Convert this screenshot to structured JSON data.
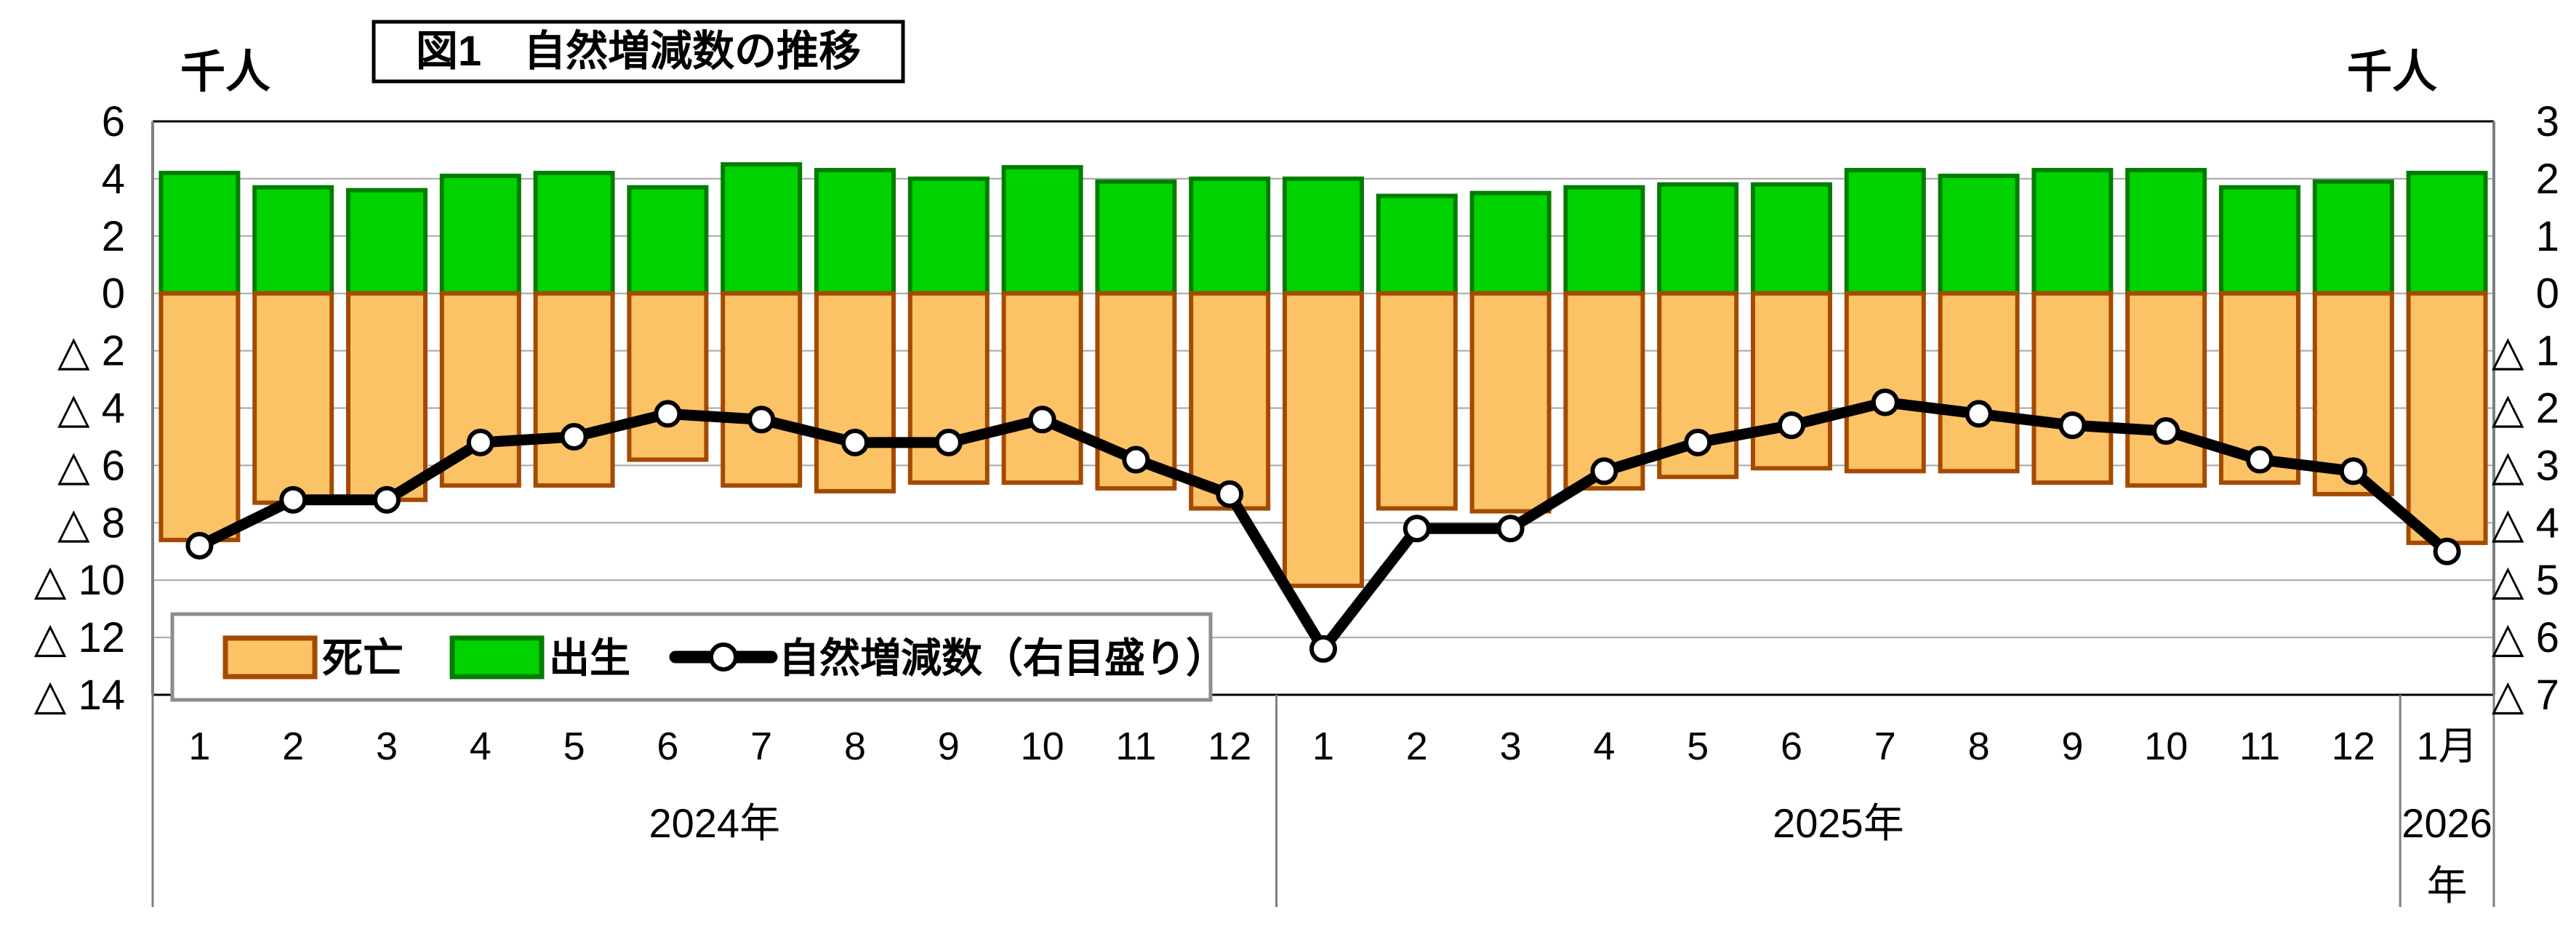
{
  "title": "図1　自然増減数の推移",
  "axis_unit_left": "千人",
  "axis_unit_right": "千人",
  "legend": {
    "deaths_label": "死亡",
    "births_label": "出生",
    "net_label": "自然増減数（右目盛り）"
  },
  "colors": {
    "births_fill": "#00d300",
    "births_border": "#007d00",
    "deaths_fill": "#fbc266",
    "deaths_border": "#a44a00",
    "net_line": "#000000",
    "marker_fill": "#ffffff",
    "gridline": "#a6a6a6",
    "axis_line": "#7f7f7f",
    "border_line": "#000000"
  },
  "chart_data": {
    "type": "bar+line",
    "title": "図1　自然増減数の推移",
    "value_unit": "千人",
    "x_month_labels": [
      "1",
      "2",
      "3",
      "4",
      "5",
      "6",
      "7",
      "8",
      "9",
      "10",
      "11",
      "12",
      "1",
      "2",
      "3",
      "4",
      "5",
      "6",
      "7",
      "8",
      "9",
      "10",
      "11",
      "12",
      "1月"
    ],
    "year_groups": [
      {
        "label": "2024年",
        "month_count": 12
      },
      {
        "label": "2025年",
        "month_count": 12
      },
      {
        "label": "2026年",
        "month_count": 1
      }
    ],
    "left_axis": {
      "unit": "千人",
      "max": 6,
      "min": -14,
      "step": 2,
      "ticks": [
        "6",
        "4",
        "2",
        "0",
        "△ 2",
        "△ 4",
        "△ 6",
        "△ 8",
        "△ 10",
        "△ 12",
        "△ 14"
      ]
    },
    "right_axis": {
      "unit": "千人",
      "max": 3,
      "min": -7,
      "step": 1,
      "ticks": [
        "3",
        "2",
        "1",
        "0",
        "△ 1",
        "△ 2",
        "△ 3",
        "△ 4",
        "△ 5",
        "△ 6",
        "△ 7"
      ]
    },
    "grid": true,
    "legend_position": "inside-bottom-left",
    "series": [
      {
        "name": "出生",
        "type": "bar",
        "axis": "left",
        "values": [
          4.2,
          3.7,
          3.6,
          4.1,
          4.2,
          3.7,
          4.5,
          4.3,
          4.0,
          4.4,
          3.9,
          4.0,
          4.0,
          3.4,
          3.5,
          3.7,
          3.8,
          3.8,
          4.3,
          4.1,
          4.3,
          4.3,
          3.7,
          3.9,
          4.2
        ]
      },
      {
        "name": "死亡",
        "type": "bar",
        "axis": "left",
        "values": [
          -8.6,
          -7.3,
          -7.2,
          -6.7,
          -6.7,
          -5.8,
          -6.7,
          -6.9,
          -6.6,
          -6.6,
          -6.8,
          -7.5,
          -10.2,
          -7.5,
          -7.6,
          -6.8,
          -6.4,
          -6.1,
          -6.2,
          -6.2,
          -6.6,
          -6.7,
          -6.6,
          -7.0,
          -8.7
        ]
      },
      {
        "name": "自然増減数（右目盛り）",
        "type": "line",
        "axis": "right",
        "values": [
          -4.4,
          -3.6,
          -3.6,
          -2.6,
          -2.5,
          -2.1,
          -2.2,
          -2.6,
          -2.6,
          -2.2,
          -2.9,
          -3.5,
          -6.2,
          -4.1,
          -4.1,
          -3.1,
          -2.6,
          -2.3,
          -1.9,
          -2.1,
          -2.3,
          -2.4,
          -2.9,
          -3.1,
          -4.5
        ]
      }
    ]
  }
}
